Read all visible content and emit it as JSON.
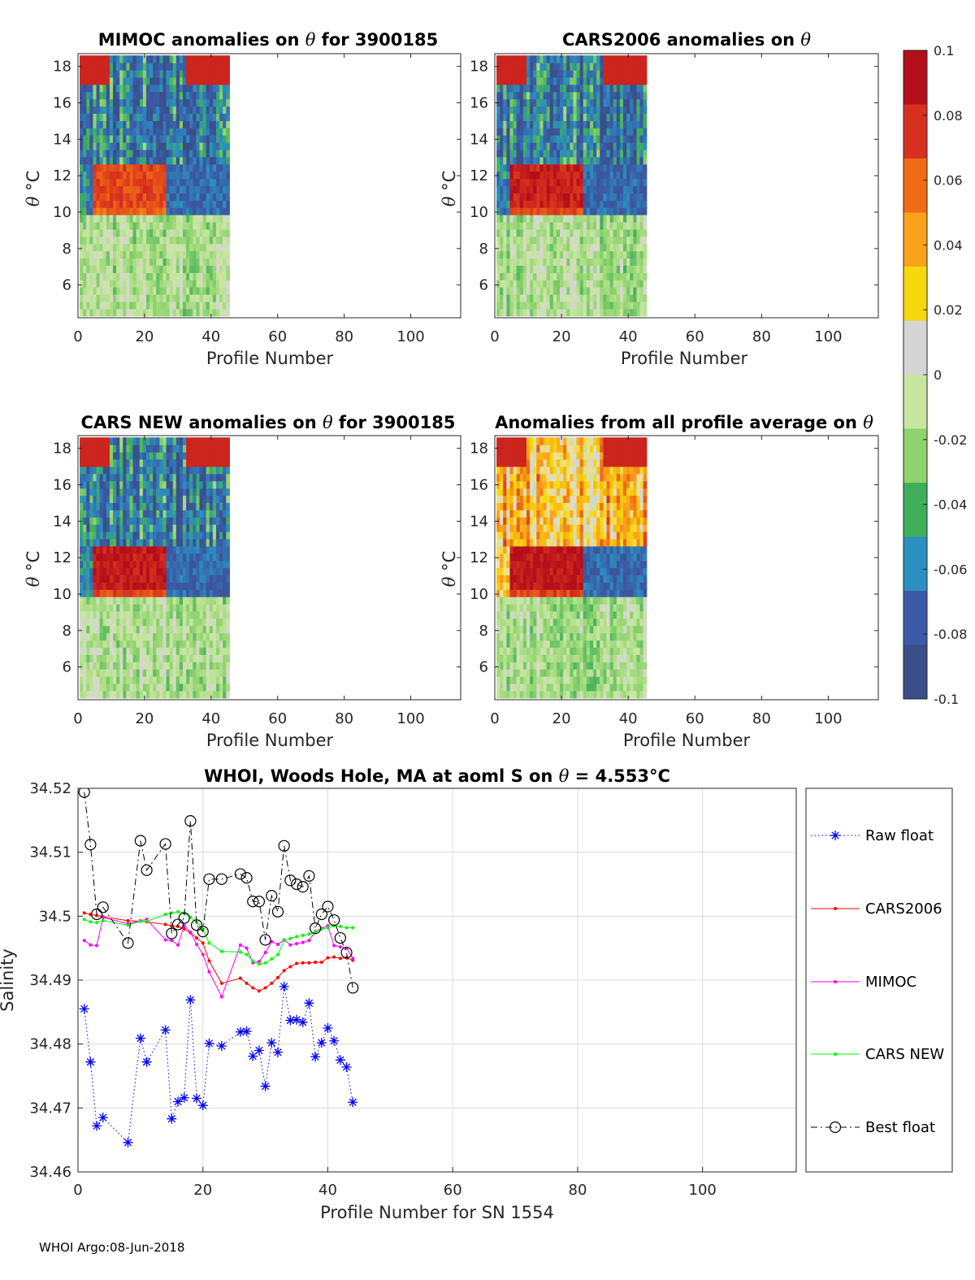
{
  "heatmaps": [
    {
      "title_pre": "MIMOC anomalies on ",
      "title_sym": "θ",
      "title_post": "  for 3900185",
      "xlabel": "Profile Number",
      "ylabel_sym": "θ",
      "ylabel_unit": " °C",
      "seed": 3,
      "warm_band": 0.55
    },
    {
      "title_pre": "CARS2006 anomalies on ",
      "title_sym": "θ",
      "title_post": "",
      "xlabel": "Profile Number",
      "ylabel_sym": "θ",
      "ylabel_unit": " °C",
      "seed": 7,
      "warm_band": 0.85
    },
    {
      "title_pre": "CARS NEW anomalies on ",
      "title_sym": "θ",
      "title_post": " for 3900185",
      "xlabel": "Profile Number",
      "ylabel_sym": "θ",
      "ylabel_unit": " °C",
      "seed": 11,
      "warm_band": 0.9
    },
    {
      "title_pre": "Anomalies from all profile average on ",
      "title_sym": "θ",
      "title_post": "",
      "xlabel": "Profile Number",
      "ylabel_sym": "θ",
      "ylabel_unit": " °C",
      "seed": 19,
      "warm_band": 0.95
    }
  ],
  "heat_axes": {
    "xticks": [
      "0",
      "20",
      "40",
      "60",
      "80",
      "100"
    ],
    "xtick_values": [
      0,
      20,
      40,
      60,
      80,
      100
    ],
    "xlim": [
      0,
      115
    ],
    "yticks": [
      "6",
      "8",
      "10",
      "12",
      "14",
      "16",
      "18"
    ],
    "ytick_values": [
      6,
      8,
      10,
      12,
      14,
      16,
      18
    ],
    "ylim": [
      4.2,
      18.7
    ],
    "data_xmax": 45
  },
  "colorbar": {
    "labels": [
      "0.1",
      "0.08",
      "0.06",
      "0.04",
      "0.02",
      "0",
      "-0.02",
      "-0.04",
      "-0.06",
      "-0.08",
      "-0.1"
    ],
    "values": [
      0.1,
      0.08,
      0.06,
      0.04,
      0.02,
      0,
      -0.02,
      -0.04,
      -0.06,
      -0.08,
      -0.1
    ],
    "colors": [
      "#b40f1a",
      "#d7301f",
      "#f06b16",
      "#f8a31b",
      "#f6d80c",
      "#d5d5d5",
      "#c8e6a0",
      "#8ed36d",
      "#3fae5b",
      "#2b8fbf",
      "#3b5aa6",
      "#3a4f8a"
    ]
  },
  "chart_data": {
    "type": "line",
    "title_pre": "WHOI, Woods Hole, MA at aoml S on ",
    "title_sym": "θ",
    "title_post": " = 4.553°C",
    "xlabel": "Profile Number for SN 1554",
    "ylabel": "Salinity",
    "xlim": [
      0,
      115
    ],
    "ylim": [
      34.46,
      34.52
    ],
    "xticks": [
      "0",
      "20",
      "40",
      "60",
      "80",
      "100"
    ],
    "xtick_values": [
      0,
      20,
      40,
      60,
      80,
      100
    ],
    "yticks": [
      "34.46",
      "34.47",
      "34.48",
      "34.49",
      "34.5",
      "34.51",
      "34.52"
    ],
    "ytick_values": [
      34.46,
      34.47,
      34.48,
      34.49,
      34.5,
      34.51,
      34.52
    ],
    "grid": true,
    "legend_position": "right-outside",
    "series": [
      {
        "name": "Raw float",
        "color": "#0000ff",
        "marker": "star",
        "linestyle": "dotted",
        "x": [
          1,
          2,
          3,
          4,
          8,
          10,
          11,
          14,
          15,
          16,
          17,
          18,
          19,
          20,
          21,
          23,
          26,
          27,
          28,
          29,
          30,
          31,
          32,
          33,
          34,
          35,
          36,
          37,
          38,
          39,
          40,
          41,
          42,
          43,
          44
        ],
        "y": [
          34.4855,
          34.4772,
          34.4672,
          34.4685,
          34.4646,
          34.4809,
          34.4772,
          34.4822,
          34.4683,
          34.471,
          34.4716,
          34.4869,
          34.4715,
          34.4704,
          34.4801,
          34.4797,
          34.4819,
          34.482,
          34.4781,
          34.479,
          34.4734,
          34.4802,
          34.4787,
          34.489,
          34.4837,
          34.4838,
          34.4834,
          34.4864,
          34.478,
          34.4802,
          34.4825,
          34.4805,
          34.4775,
          34.4764,
          34.4709
        ]
      },
      {
        "name": "CARS2006",
        "color": "#ff0000",
        "marker": "dot",
        "linestyle": "solid",
        "x": [
          1,
          2,
          3,
          4,
          8,
          10,
          11,
          14,
          15,
          16,
          17,
          18,
          19,
          20,
          21,
          23,
          26,
          27,
          28,
          29,
          30,
          31,
          32,
          33,
          34,
          35,
          36,
          37,
          38,
          39,
          40,
          41,
          42,
          43,
          44
        ],
        "y": [
          34.5005,
          34.5003,
          34.5001,
          34.4999,
          34.4993,
          34.4992,
          34.4991,
          34.4987,
          34.4985,
          34.4984,
          34.498,
          34.4974,
          34.4966,
          34.4958,
          34.493,
          34.4895,
          34.4903,
          34.4895,
          34.4888,
          34.4883,
          34.4888,
          34.4895,
          34.4904,
          34.4915,
          34.4921,
          34.4926,
          34.4927,
          34.4927,
          34.4928,
          34.4928,
          34.4935,
          34.4936,
          34.4934,
          34.4935,
          34.4931
        ]
      },
      {
        "name": "MIMOC",
        "color": "#ff00ff",
        "marker": "dot",
        "linestyle": "solid",
        "x": [
          1,
          2,
          3,
          4,
          8,
          10,
          11,
          14,
          15,
          16,
          17,
          18,
          19,
          20,
          21,
          23,
          26,
          27,
          28,
          29,
          30,
          31,
          32,
          33,
          34,
          35,
          36,
          37,
          38,
          39,
          40,
          41,
          42,
          43,
          44
        ],
        "y": [
          34.4962,
          34.4955,
          34.4954,
          34.4998,
          34.4988,
          34.4993,
          34.4995,
          34.4963,
          34.4962,
          34.4955,
          34.4985,
          34.4975,
          34.4956,
          34.494,
          34.4913,
          34.4874,
          34.4955,
          34.495,
          34.4927,
          34.4929,
          34.4943,
          34.496,
          34.4956,
          34.4963,
          34.4955,
          34.4957,
          34.4959,
          34.4962,
          34.4976,
          34.4981,
          34.4985,
          34.4954,
          34.4952,
          34.495,
          34.4934
        ]
      },
      {
        "name": "CARS NEW",
        "color": "#00ff00",
        "marker": "dot",
        "linestyle": "solid",
        "x": [
          1,
          2,
          3,
          4,
          8,
          10,
          11,
          14,
          15,
          16,
          17,
          18,
          19,
          20,
          21,
          23,
          26,
          27,
          28,
          29,
          30,
          31,
          32,
          33,
          34,
          35,
          36,
          37,
          38,
          39,
          40,
          41,
          42,
          43,
          44
        ],
        "y": [
          34.4995,
          34.4991,
          34.499,
          34.4993,
          34.4986,
          34.4992,
          34.4992,
          34.5003,
          34.5005,
          34.5007,
          34.5005,
          34.4998,
          34.499,
          34.498,
          34.4958,
          34.4945,
          34.4944,
          34.494,
          34.493,
          34.4925,
          34.4927,
          34.4933,
          34.494,
          34.4962,
          34.4965,
          34.4968,
          34.497,
          34.4972,
          34.4975,
          34.498,
          34.4982,
          34.4985,
          34.4984,
          34.4982,
          34.4982
        ]
      },
      {
        "name": "Best float",
        "color": "#000000",
        "marker": "circle",
        "linestyle": "dashdot",
        "x": [
          1,
          2,
          3,
          4,
          8,
          10,
          11,
          14,
          15,
          16,
          17,
          18,
          19,
          20,
          21,
          23,
          26,
          27,
          28,
          29,
          30,
          31,
          32,
          33,
          34,
          35,
          36,
          37,
          38,
          39,
          40,
          41,
          42,
          43,
          44
        ],
        "y": [
          34.5194,
          34.5112,
          34.5003,
          34.5014,
          34.4958,
          34.5118,
          34.5072,
          34.5113,
          34.4973,
          34.4987,
          34.4997,
          34.5149,
          34.4986,
          34.4976,
          34.5058,
          34.5058,
          34.5066,
          34.506,
          34.5023,
          34.5023,
          34.4963,
          34.5032,
          34.5007,
          34.511,
          34.5056,
          34.505,
          34.5046,
          34.5063,
          34.4981,
          34.5003,
          34.5015,
          34.4994,
          34.4966,
          34.4943,
          34.4888
        ]
      }
    ]
  },
  "footer": "WHOI Argo:08-Jun-2018"
}
